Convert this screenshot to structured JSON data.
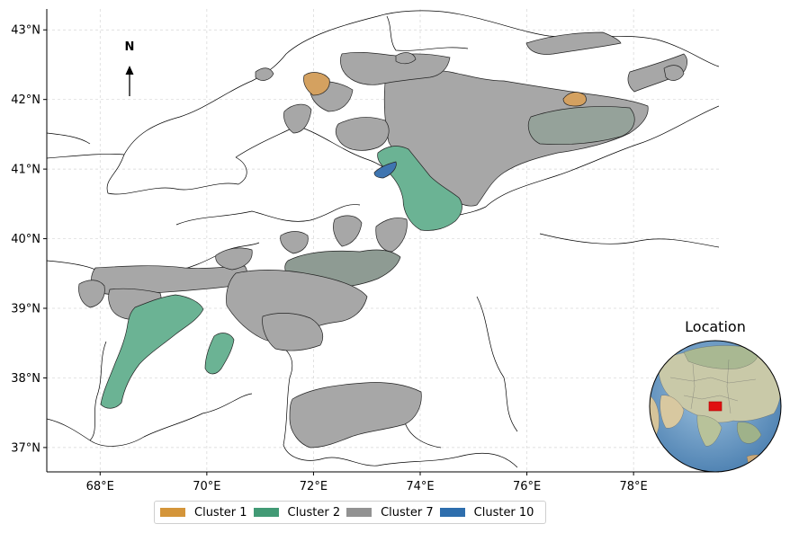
{
  "chart_data": {
    "type": "map",
    "x_ticks": [
      "68°E",
      "70°E",
      "72°E",
      "74°E",
      "76°E",
      "78°E"
    ],
    "y_ticks": [
      "43°N",
      "42°N",
      "41°N",
      "40°N",
      "39°N",
      "38°N",
      "37°N"
    ],
    "xlim": [
      67,
      79.6
    ],
    "ylim": [
      36.65,
      43.3
    ],
    "grid": true,
    "legend_position": "bottom-center",
    "north_arrow_label": "N",
    "inset_title": "Location",
    "legend": [
      {
        "label": "Cluster 1",
        "color": "#d4953a"
      },
      {
        "label": "Cluster 2",
        "color": "#429a75"
      },
      {
        "label": "Cluster 7",
        "color": "#929292"
      },
      {
        "label": "Cluster 10",
        "color": "#2e6ead"
      }
    ]
  }
}
